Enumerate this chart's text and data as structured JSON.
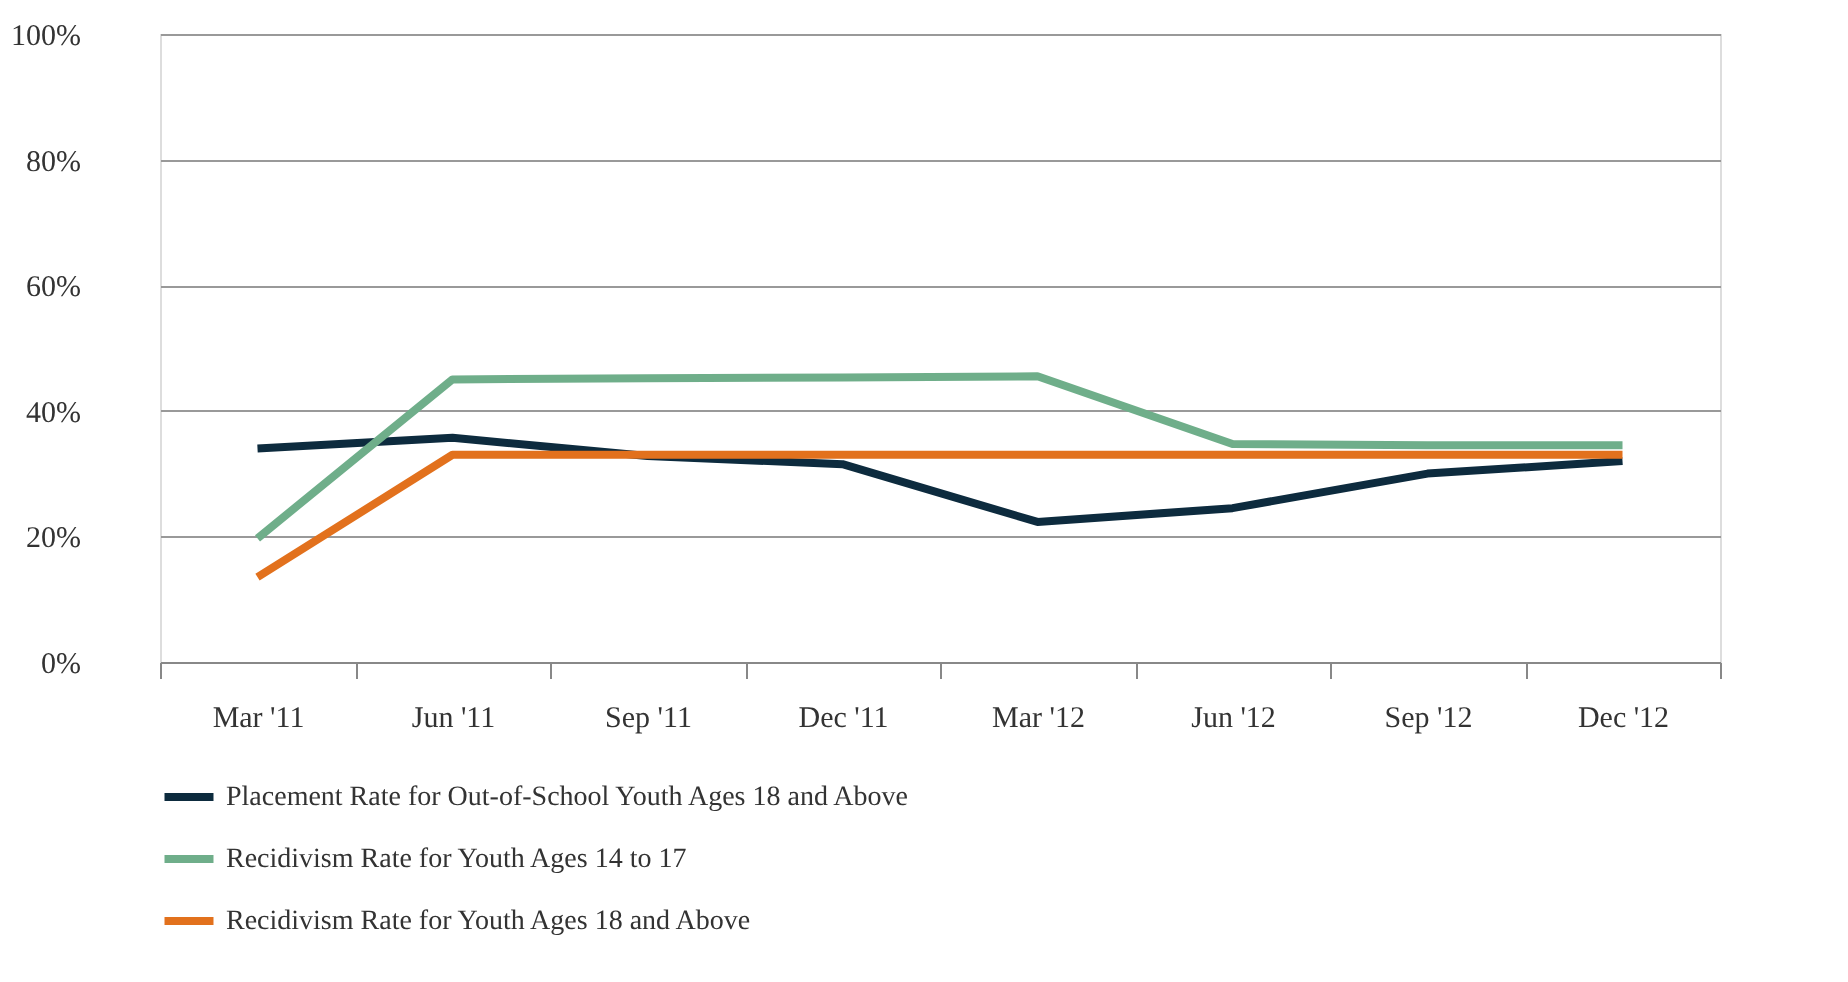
{
  "chart_data": {
    "type": "line",
    "categories": [
      "Mar '11",
      "Jun '11",
      "Sep '11",
      "Dec '11",
      "Mar '12",
      "Jun '12",
      "Sep '12",
      "Dec '12"
    ],
    "series": [
      {
        "name": "Placement Rate for Out-of-School Youth Ages 18 and Above",
        "color": "#0d2b3e",
        "values": [
          34,
          35.7,
          32.8,
          31.5,
          22.3,
          24.5,
          30,
          32
        ]
      },
      {
        "name": "Recidivism Rate for Youth Ages 14 to 17",
        "color": "#6fae8a",
        "values": [
          19.7,
          45,
          45.2,
          45.3,
          45.5,
          34.7,
          34.5,
          34.5
        ]
      },
      {
        "name": "Recidivism Rate for Youth Ages 18 and Above",
        "color": "#e2711d",
        "values": [
          13.5,
          33,
          33,
          33,
          33,
          33,
          33,
          33
        ]
      }
    ],
    "ylim": [
      0,
      100
    ],
    "yticks": [
      {
        "value": 0,
        "label": "0%"
      },
      {
        "value": 20,
        "label": "20%"
      },
      {
        "value": 40,
        "label": "40%"
      },
      {
        "value": 60,
        "label": "60%"
      },
      {
        "value": 80,
        "label": "80%"
      },
      {
        "value": 100,
        "label": "100%"
      }
    ],
    "grid": "y",
    "legend": "bottom",
    "marker": "none",
    "line_style": "solid"
  }
}
